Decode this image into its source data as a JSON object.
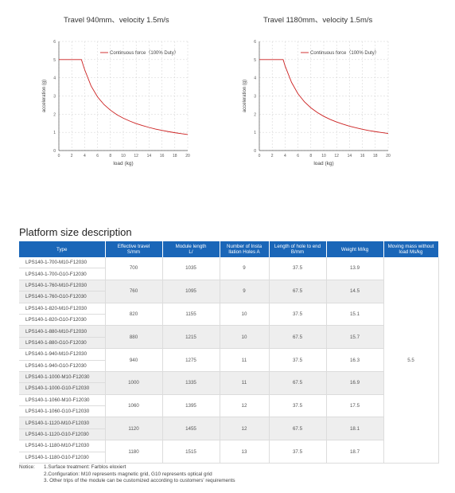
{
  "charts": [
    {
      "title": "Travel 940mm、velocity 1.5m/s"
    },
    {
      "title": "Travel 1180mm、velocity 1.5m/s"
    }
  ],
  "chart_data": [
    {
      "type": "line",
      "title": "Travel 940mm、velocity 1.5m/s",
      "xlabel": "load (kg)",
      "ylabel": "acceleration (g)",
      "xlim": [
        0,
        20
      ],
      "ylim": [
        0,
        6
      ],
      "xticks": [
        "0",
        "2",
        "4",
        "6",
        "8",
        "10",
        "12",
        "14",
        "16",
        "18",
        "20"
      ],
      "yticks": [
        "0",
        "1",
        "2",
        "3",
        "4",
        "5",
        "6"
      ],
      "grid": true,
      "legend_position": "top-right",
      "series": [
        {
          "name": "Continuous force（100% Duty）",
          "color": "#cc1f1f",
          "x": [
            0,
            3.5,
            4,
            5,
            6,
            7,
            8,
            9,
            10,
            11,
            12,
            13,
            14,
            15,
            16,
            17,
            18,
            19,
            20
          ],
          "y": [
            5,
            5,
            4.45,
            3.55,
            2.95,
            2.53,
            2.22,
            1.97,
            1.78,
            1.62,
            1.48,
            1.37,
            1.27,
            1.18,
            1.11,
            1.04,
            0.98,
            0.93,
            0.88
          ]
        }
      ]
    },
    {
      "type": "line",
      "title": "Travel 1180mm、velocity 1.5m/s",
      "xlabel": "load (kg)",
      "ylabel": "acceleration (g)",
      "xlim": [
        0,
        20
      ],
      "ylim": [
        0,
        6
      ],
      "xticks": [
        "0",
        "2",
        "4",
        "6",
        "8",
        "10",
        "12",
        "14",
        "16",
        "18",
        "20"
      ],
      "yticks": [
        "0",
        "1",
        "2",
        "3",
        "4",
        "5",
        "6"
      ],
      "grid": true,
      "legend_position": "top-right",
      "series": [
        {
          "name": "Continuous force（100% Duty）",
          "color": "#cc1f1f",
          "x": [
            0,
            3.7,
            4,
            5,
            6,
            7,
            8,
            9,
            10,
            11,
            12,
            13,
            14,
            15,
            16,
            17,
            18,
            19,
            20
          ],
          "y": [
            5,
            5,
            4.65,
            3.75,
            3.12,
            2.68,
            2.35,
            2.09,
            1.88,
            1.71,
            1.57,
            1.45,
            1.34,
            1.25,
            1.17,
            1.1,
            1.04,
            0.99,
            0.94
          ]
        }
      ]
    }
  ],
  "section_title": "Platform size description",
  "table": {
    "headers": [
      "Type",
      "Effective travel S/mm",
      "Module length L/",
      "Number of Installation Holes A",
      "Length of hole to end B/mm",
      "Weight M/kg",
      "Moving mass without load Ms/kg"
    ],
    "header_lines": [
      [
        "Type"
      ],
      [
        "Effective travel",
        "S/mm"
      ],
      [
        "Module length",
        "L/"
      ],
      [
        "Number of Insta",
        "llation Holes A"
      ],
      [
        "Length of hole to end",
        "B/mm"
      ],
      [
        "Weight M/kg"
      ],
      [
        "Moving mass without",
        "load Ms/kg"
      ]
    ],
    "groups": [
      {
        "types": [
          "LPS140-1-700-M10-F12030",
          "LPS140-1-700-G10-F12030"
        ],
        "travel": "700",
        "length": "1035",
        "holes": "9",
        "hole_to_end": "37.5",
        "weight": "13.9"
      },
      {
        "types": [
          "LPS140-1-760-M10-F12030",
          "LPS140-1-760-G10-F12030"
        ],
        "travel": "760",
        "length": "1095",
        "holes": "9",
        "hole_to_end": "67.5",
        "weight": "14.5"
      },
      {
        "types": [
          "LPS140-1-820-M10-F12030",
          "LPS140-1-820-G10-F12030"
        ],
        "travel": "820",
        "length": "1155",
        "holes": "10",
        "hole_to_end": "37.5",
        "weight": "15.1"
      },
      {
        "types": [
          "LPS140-1-880-M10-F12030",
          "LPS140-1-880-G10-F12030"
        ],
        "travel": "880",
        "length": "1215",
        "holes": "10",
        "hole_to_end": "67.5",
        "weight": "15.7"
      },
      {
        "types": [
          "LPS140-1-940-M10-F12030",
          "LPS140-1-940-G10-F12030"
        ],
        "travel": "940",
        "length": "1275",
        "holes": "11",
        "hole_to_end": "37.5",
        "weight": "16.3"
      },
      {
        "types": [
          "LPS140-1-1000-M10-F12030",
          "LPS140-1-1000-G10-F12030"
        ],
        "travel": "1000",
        "length": "1335",
        "holes": "11",
        "hole_to_end": "67.5",
        "weight": "16.9"
      },
      {
        "types": [
          "LPS140-1-1060-M10-F12030",
          "LPS140-1-1060-G10-F12030"
        ],
        "travel": "1060",
        "length": "1395",
        "holes": "12",
        "hole_to_end": "37.5",
        "weight": "17.5"
      },
      {
        "types": [
          "LPS140-1-1120-M10-F12030",
          "LPS140-1-1120-G10-F12030"
        ],
        "travel": "1120",
        "length": "1455",
        "holes": "12",
        "hole_to_end": "67.5",
        "weight": "18.1"
      },
      {
        "types": [
          "LPS140-1-1180-M10-F12030",
          "LPS140-1-1180-G10-F12030"
        ],
        "travel": "1180",
        "length": "1515",
        "holes": "13",
        "hole_to_end": "37.5",
        "weight": "18.7"
      }
    ],
    "moving_mass": "5.5"
  },
  "notice": {
    "label": "Notice:",
    "items": [
      "1.Surface treatment: Farblos eloxiert",
      "2.Configuration: M10 represents magnetic grid, G10 represents optical grid",
      "3. Other trips of the module can be customized according to customers' requirements"
    ]
  },
  "colors": {
    "header_bg": "#1a66b8",
    "curve": "#cc1f1f",
    "row_gray": "#eeeeee",
    "grid": "#d0d0d0"
  }
}
